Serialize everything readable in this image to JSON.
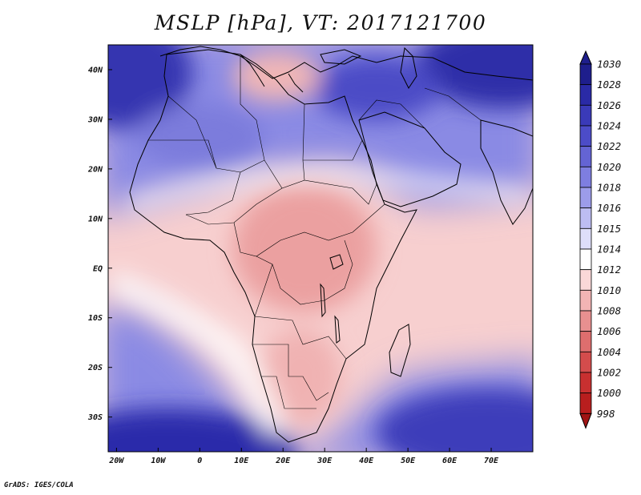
{
  "title": "MSLP [hPa], VT: 2017121700",
  "footer": "GrADS: IGES/COLA",
  "map": {
    "lat_range": [
      -37,
      45
    ],
    "lon_range": [
      -22,
      80
    ],
    "lat_ticks": [
      {
        "value": 40,
        "label": "40N"
      },
      {
        "value": 30,
        "label": "30N"
      },
      {
        "value": 20,
        "label": "20N"
      },
      {
        "value": 10,
        "label": "10N"
      },
      {
        "value": 0,
        "label": "EQ"
      },
      {
        "value": -10,
        "label": "10S"
      },
      {
        "value": -20,
        "label": "20S"
      },
      {
        "value": -30,
        "label": "30S"
      }
    ],
    "lon_ticks": [
      {
        "value": -20,
        "label": "20W"
      },
      {
        "value": -10,
        "label": "10W"
      },
      {
        "value": 0,
        "label": "0"
      },
      {
        "value": 10,
        "label": "10E"
      },
      {
        "value": 20,
        "label": "20E"
      },
      {
        "value": 30,
        "label": "30E"
      },
      {
        "value": 40,
        "label": "40E"
      },
      {
        "value": 50,
        "label": "50E"
      },
      {
        "value": 60,
        "label": "60E"
      },
      {
        "value": 70,
        "label": "70E"
      }
    ],
    "pressure_regions": [
      {
        "name": "azores-high",
        "value": 1028,
        "lon": -18,
        "lat": 40
      },
      {
        "name": "asia-high",
        "value": 1030,
        "lon": 75,
        "lat": 44
      },
      {
        "name": "sahara-high",
        "value": 1020,
        "lon": 5,
        "lat": 28
      },
      {
        "name": "arabia-high",
        "value": 1022,
        "lon": 45,
        "lat": 27
      },
      {
        "name": "mediterranean-low",
        "value": 1012,
        "lon": 20,
        "lat": 41
      },
      {
        "name": "central-africa-low",
        "value": 1008,
        "lon": 26,
        "lat": 0
      },
      {
        "name": "south-atlantic-high",
        "value": 1026,
        "lon": -12,
        "lat": -34
      },
      {
        "name": "indian-ocean-high",
        "value": 1024,
        "lon": 70,
        "lat": -33
      }
    ]
  },
  "colorbar": {
    "levels": [
      1030,
      1028,
      1026,
      1024,
      1022,
      1020,
      1018,
      1016,
      1015,
      1014,
      1012,
      1010,
      1008,
      1006,
      1004,
      1002,
      1000,
      998
    ],
    "colors": [
      "#1e1e8c",
      "#2a2aa6",
      "#3a3ab8",
      "#4c4cc8",
      "#6464d4",
      "#7e7ee0",
      "#9c9cea",
      "#bdbdf2",
      "#dedefa",
      "#ffffff",
      "#fad8d8",
      "#f2b4b4",
      "#e89090",
      "#de6e6e",
      "#d44c4c",
      "#c83030",
      "#b81e1e",
      "#a01414"
    ]
  }
}
